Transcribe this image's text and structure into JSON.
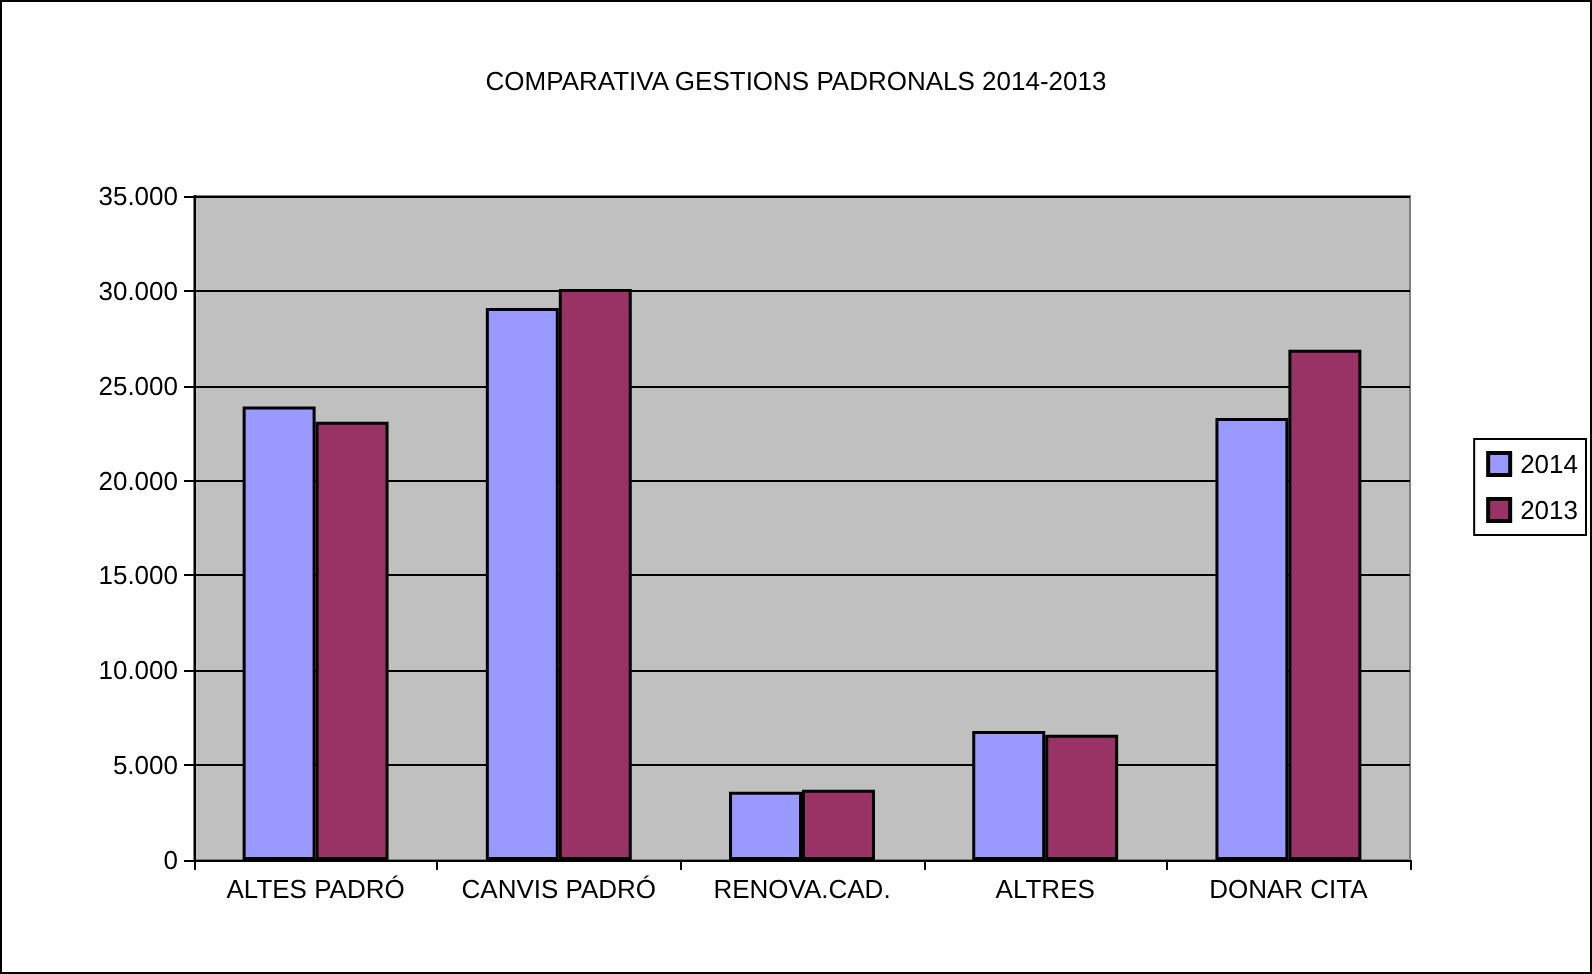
{
  "chart_data": {
    "type": "bar",
    "title": "COMPARATIVA GESTIONS PADRONALS 2014-2013",
    "categories": [
      "ALTES PADRÓ",
      "CANVIS PADRÓ",
      "RENOVA.CAD.",
      "ALTRES",
      "DONAR CITA"
    ],
    "series": [
      {
        "name": "2014",
        "color": "#9999ff",
        "values": [
          23900,
          29100,
          3600,
          6800,
          23300
        ]
      },
      {
        "name": "2013",
        "color": "#993366",
        "values": [
          23100,
          30100,
          3700,
          6600,
          26900
        ]
      }
    ],
    "ylim": [
      0,
      35000
    ],
    "yticks": [
      {
        "value": 0,
        "label": "0"
      },
      {
        "value": 5000,
        "label": "5.000"
      },
      {
        "value": 10000,
        "label": "10.000"
      },
      {
        "value": 15000,
        "label": "15.000"
      },
      {
        "value": 20000,
        "label": "20.000"
      },
      {
        "value": 25000,
        "label": "25.000"
      },
      {
        "value": 30000,
        "label": "30.000"
      },
      {
        "value": 35000,
        "label": "35.000"
      }
    ],
    "grid": "y",
    "legend": "right"
  }
}
